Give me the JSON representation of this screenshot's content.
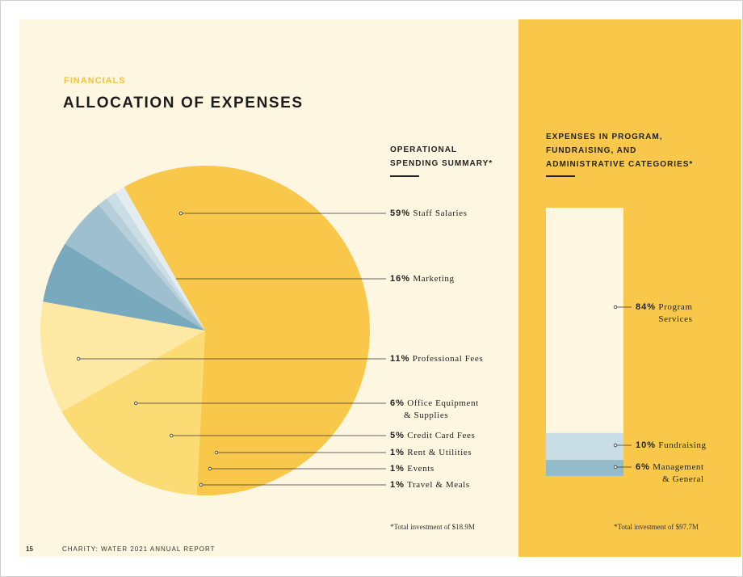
{
  "header": {
    "eyebrow": "FINANCIALS",
    "title": "ALLOCATION OF EXPENSES"
  },
  "operational": {
    "heading_line1": "OPERATIONAL",
    "heading_line2": "SPENDING SUMMARY*",
    "footnote": "*Total investment of $18.9M"
  },
  "categories": {
    "heading_line1": "EXPENSES IN PROGRAM,",
    "heading_line2": "FUNDRAISING, AND",
    "heading_line3": "ADMINISTRATIVE CATEGORIES*",
    "footnote": "*Total investment of $97.7M"
  },
  "footer": {
    "page_number": "15",
    "report_name": "CHARITY: WATER 2021 ANNUAL REPORT"
  },
  "chart_data": [
    {
      "type": "pie",
      "title": "OPERATIONAL SPENDING SUMMARY*",
      "slices": [
        {
          "pct": "59%",
          "label": "Staff Salaries",
          "value": 59,
          "color": "#f9c84a"
        },
        {
          "pct": "16%",
          "label": "Marketing",
          "value": 16,
          "color": "#fbdc74"
        },
        {
          "pct": "11%",
          "label": "Professional Fees",
          "value": 11,
          "color": "#fde8a4"
        },
        {
          "pct": "6%",
          "label": "Office Equipment",
          "label2": "& Supplies",
          "value": 6,
          "color": "#78a9bd"
        },
        {
          "pct": "5%",
          "label": "Credit Card Fees",
          "value": 5,
          "color": "#9dbfcf"
        },
        {
          "pct": "1%",
          "label": "Rent & Utilities",
          "value": 1,
          "color": "#b6cfda"
        },
        {
          "pct": "1%",
          "label": "Events",
          "value": 1,
          "color": "#cbdde5"
        },
        {
          "pct": "1%",
          "label": "Travel & Meals",
          "value": 1,
          "color": "#e3edf1"
        }
      ]
    },
    {
      "type": "bar",
      "title": "EXPENSES IN PROGRAM, FUNDRAISING, AND ADMINISTRATIVE CATEGORIES*",
      "segments": [
        {
          "pct": "84%",
          "label": "Program",
          "label2": "Services",
          "value": 84,
          "color": "#fdf6e1"
        },
        {
          "pct": "10%",
          "label": "Fundraising",
          "value": 10,
          "color": "#c9dde6"
        },
        {
          "pct": "6%",
          "label": "Management",
          "label2": "& General",
          "value": 6,
          "color": "#93bccb"
        }
      ]
    }
  ]
}
